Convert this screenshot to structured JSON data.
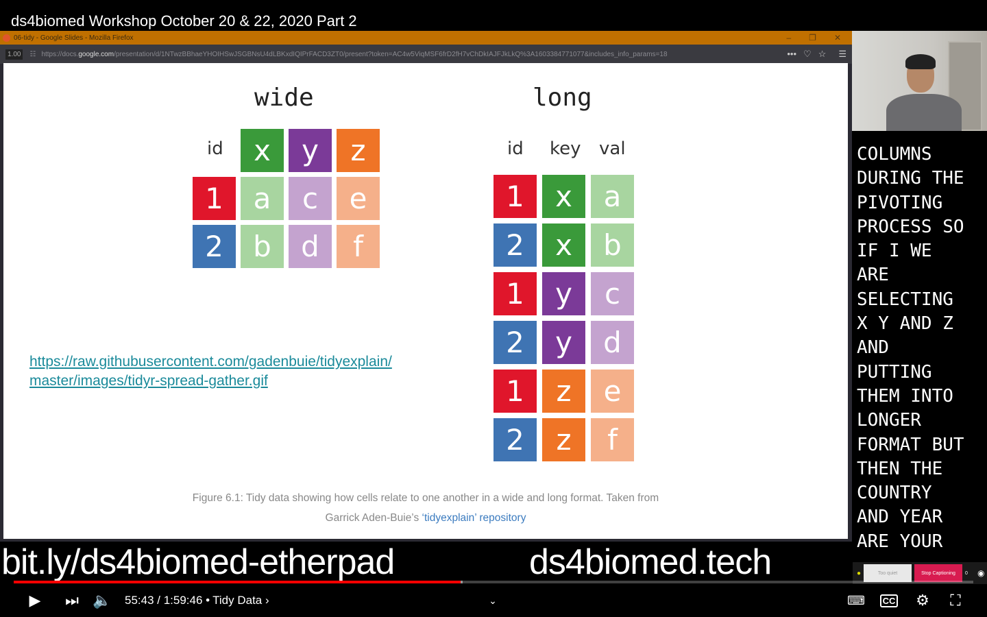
{
  "video": {
    "title": "ds4biomed Workshop October 20 & 22, 2020 Part 2",
    "current_time": "55:43",
    "duration": "1:59:46",
    "chapter": "Tidy Data",
    "progress_percent": 46.6,
    "buffered_percent": 46.8
  },
  "browser": {
    "window_title": "06-tidy - Google Slides - Mozilla Firefox",
    "zoom": "1.00",
    "url_prefix": "https://docs.",
    "url_domain": "google.com",
    "url_rest": "/presentation/d/1NTwzBBhaeYHOIHSwJSGBNsU4dLBKxdIQIPrFACD3ZT0/present?token=AC4w5ViqMSF6frD2fH7vChDkIAJFJkLkQ%3A1603384771077&includes_info_params=18"
  },
  "slide": {
    "wide": {
      "title": "wide",
      "headers": [
        "id",
        "x",
        "y",
        "z"
      ],
      "rows": [
        [
          "1",
          "a",
          "c",
          "e"
        ],
        [
          "2",
          "b",
          "d",
          "f"
        ]
      ]
    },
    "long": {
      "title": "long",
      "headers": [
        "id",
        "key",
        "val"
      ],
      "rows": [
        [
          "1",
          "x",
          "a"
        ],
        [
          "2",
          "x",
          "b"
        ],
        [
          "1",
          "y",
          "c"
        ],
        [
          "2",
          "y",
          "d"
        ],
        [
          "1",
          "z",
          "e"
        ],
        [
          "2",
          "z",
          "f"
        ]
      ]
    },
    "link_line1": "https://raw.githubusercontent.com/gadenbuie/tidyexplain/",
    "link_line2": "master/images/tidyr-spread-gather.gif",
    "caption_line1": "Figure 6.1: Tidy data showing how cells relate to one another in a wide and long format. Taken from",
    "caption_prefix": "Garrick Aden-Buie’s ",
    "caption_link": "‘tidyexplain’ repository"
  },
  "colors": {
    "id1": "#e0162b",
    "id2": "#3f74b3",
    "x": "#3a9a3a",
    "y": "#7b3a98",
    "z": "#ef7426",
    "x_light": "#a8d5a0",
    "y_light": "#c4a3cf",
    "z_light": "#f5b08a"
  },
  "overlay": {
    "etherpad": "bit.ly/ds4biomed-etherpad",
    "site": "ds4biomed.tech"
  },
  "captions": [
    "COLUMNS",
    "DURING THE",
    "PIVOTING",
    "PROCESS SO",
    "IF I WE",
    "ARE",
    "SELECTING",
    "X Y AND Z",
    "AND",
    "PUTTING",
    "THEM INTO",
    "LONGER",
    "FORMAT BUT",
    "THEN THE",
    "COUNTRY",
    "AND YEAR",
    "ARE YOUR"
  ],
  "collab": {
    "too_quiet": "Too quiet",
    "stop_captioning": "Stop Captioning",
    "count": "0"
  }
}
